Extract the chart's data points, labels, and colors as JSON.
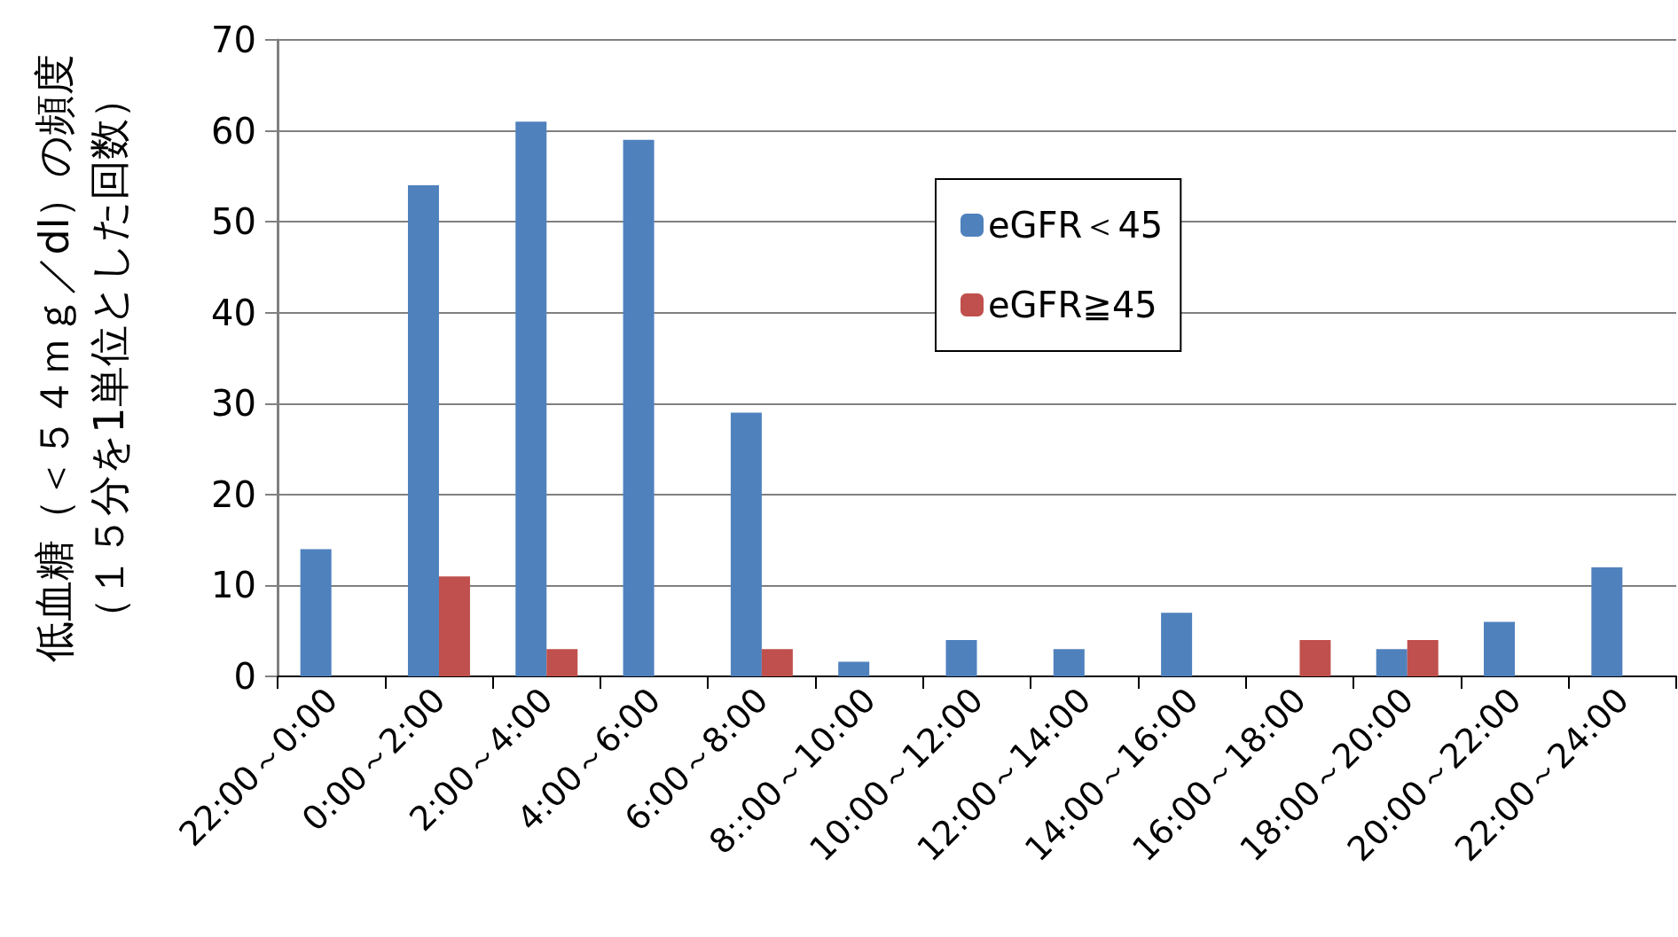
{
  "chart_data": {
    "type": "bar",
    "ylabel": "低血糖（＜５４ｍｇ／dl）の頻度（１５分を1単位とした回数）",
    "categories": [
      "22:00～0:00",
      "0:00～2:00",
      "2:00～4:00",
      "4:00～6:00",
      "6:00～8:00",
      "8::00～10:00",
      "10:00～12:00",
      "12:00～14:00",
      "14:00～16:00",
      "16:00～18:00",
      "18:00～20:00",
      "20:00～22:00",
      "22:00～24:00"
    ],
    "series": [
      {
        "name": "eGFR＜45",
        "color": "#4f81bd",
        "values": [
          14,
          54,
          61,
          59,
          29,
          1.6,
          4,
          3,
          7,
          0,
          3,
          6,
          12
        ]
      },
      {
        "name": "eGFR≧45",
        "color": "#c0504d",
        "values": [
          0,
          11,
          3,
          0,
          3,
          0,
          0,
          0,
          0,
          4,
          4,
          0,
          0
        ]
      }
    ],
    "ylim": [
      0,
      70
    ],
    "yticks": [
      0,
      10,
      20,
      30,
      40,
      50,
      60,
      70
    ],
    "grid": "y",
    "legend": "top right"
  }
}
